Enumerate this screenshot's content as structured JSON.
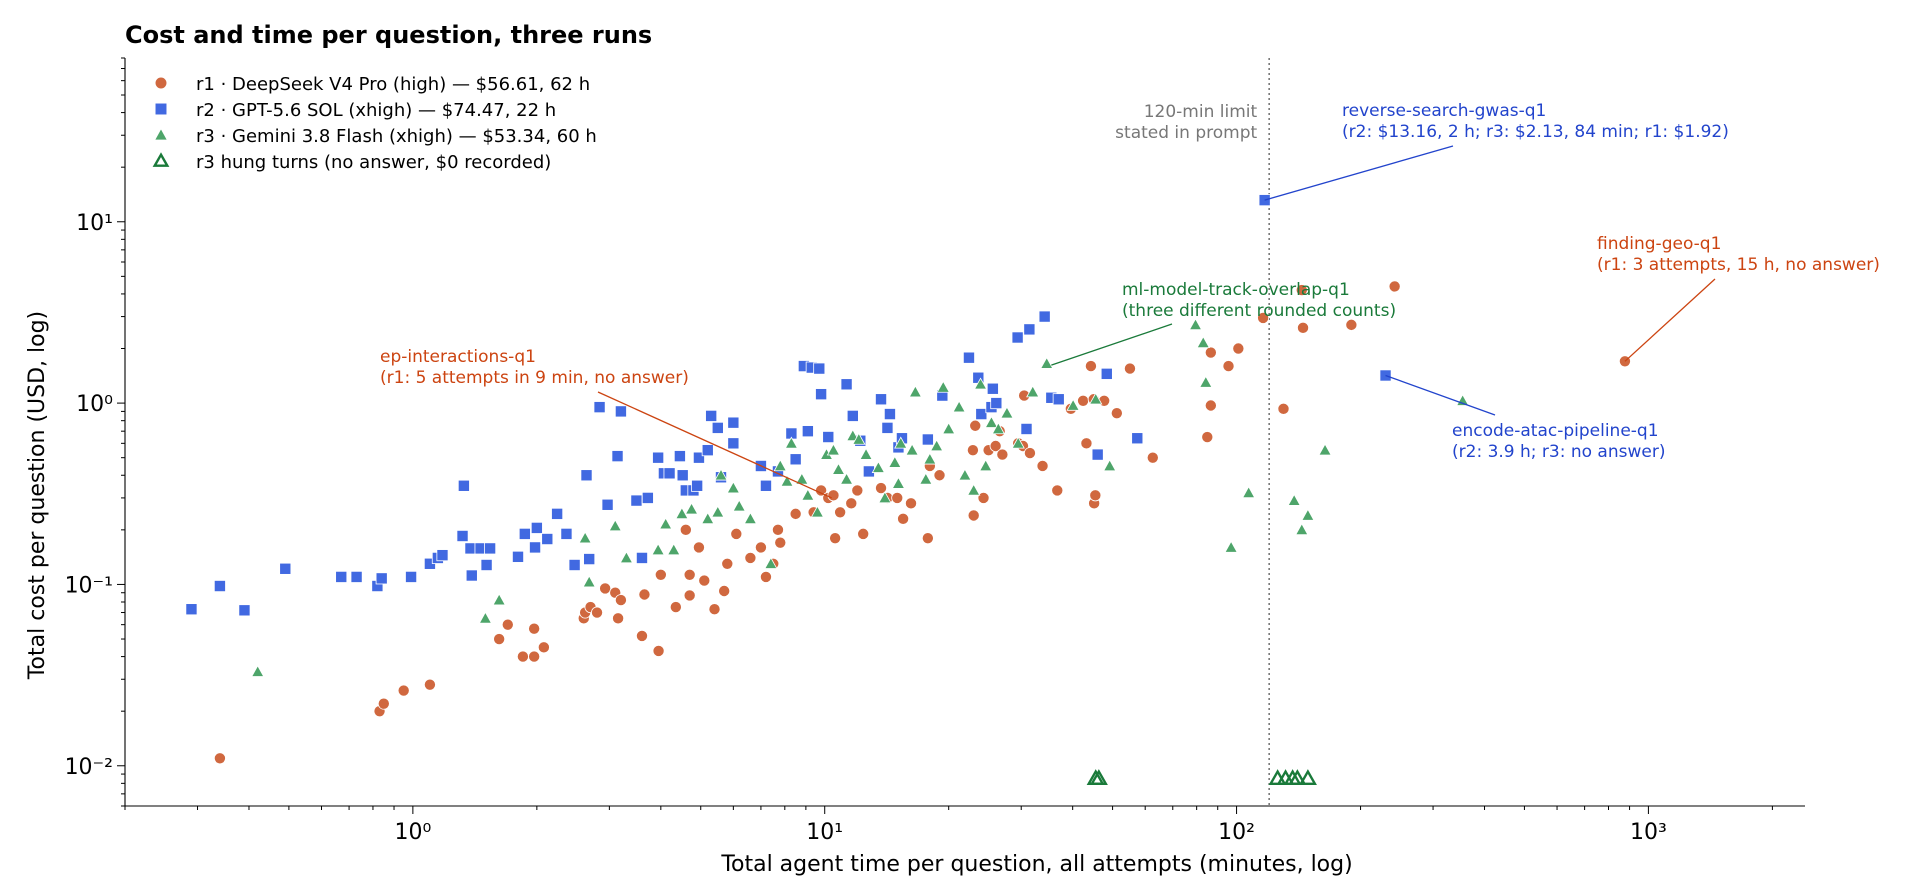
{
  "chart_data": {
    "type": "scatter",
    "title": "Cost and time per question, three runs",
    "xlabel": "Total agent time per question, all attempts (minutes, log)",
    "ylabel": "Total cost per question (USD, log)",
    "xscale": "log",
    "yscale": "log",
    "xlim": [
      0.2,
      2400
    ],
    "ylim": [
      0.006,
      80
    ],
    "xticks": [
      {
        "value": 1,
        "label": "10⁰"
      },
      {
        "value": 10,
        "label": "10¹"
      },
      {
        "value": 100,
        "label": "10²"
      },
      {
        "value": 1000,
        "label": "10³"
      }
    ],
    "yticks": [
      {
        "value": 0.01,
        "label": "10⁻²"
      },
      {
        "value": 0.1,
        "label": "10⁻¹"
      },
      {
        "value": 1,
        "label": "10⁰"
      },
      {
        "value": 10,
        "label": "10¹"
      }
    ],
    "grid": false,
    "legend_position": "top-left",
    "reference_line": {
      "x": 120,
      "label": [
        "120-min limit",
        "stated in prompt"
      ],
      "color": "#777777"
    },
    "series": [
      {
        "name": "r1 · DeepSeek V4 Pro (high) — $56.61, 62 h",
        "marker": "circle",
        "color": "#d0683f",
        "points": [
          [
            0.34,
            0.011
          ],
          [
            0.83,
            0.02
          ],
          [
            0.85,
            0.022
          ],
          [
            0.95,
            0.026
          ],
          [
            1.1,
            0.028
          ],
          [
            1.62,
            0.05
          ],
          [
            1.7,
            0.06
          ],
          [
            1.85,
            0.04
          ],
          [
            1.97,
            0.04
          ],
          [
            1.97,
            0.057
          ],
          [
            2.08,
            0.045
          ],
          [
            2.6,
            0.065
          ],
          [
            2.62,
            0.07
          ],
          [
            2.7,
            0.075
          ],
          [
            2.8,
            0.07
          ],
          [
            2.93,
            0.095
          ],
          [
            3.1,
            0.09
          ],
          [
            3.15,
            0.065
          ],
          [
            3.2,
            0.082
          ],
          [
            3.6,
            0.052
          ],
          [
            3.65,
            0.088
          ],
          [
            3.95,
            0.043
          ],
          [
            4.0,
            0.113
          ],
          [
            4.35,
            0.075
          ],
          [
            4.6,
            0.2
          ],
          [
            4.7,
            0.087
          ],
          [
            4.7,
            0.113
          ],
          [
            4.95,
            0.16
          ],
          [
            5.1,
            0.105
          ],
          [
            5.4,
            0.073
          ],
          [
            5.7,
            0.092
          ],
          [
            5.8,
            0.13
          ],
          [
            6.1,
            0.19
          ],
          [
            6.6,
            0.14
          ],
          [
            7.0,
            0.16
          ],
          [
            7.2,
            0.11
          ],
          [
            7.5,
            0.13
          ],
          [
            7.7,
            0.2
          ],
          [
            7.8,
            0.17
          ],
          [
            8.5,
            0.245
          ],
          [
            9.4,
            0.25
          ],
          [
            9.8,
            0.33
          ],
          [
            10.2,
            0.3
          ],
          [
            10.5,
            0.31
          ],
          [
            10.6,
            0.18
          ],
          [
            10.9,
            0.25
          ],
          [
            11.6,
            0.28
          ],
          [
            12.0,
            0.33
          ],
          [
            12.4,
            0.19
          ],
          [
            13.7,
            0.34
          ],
          [
            14.2,
            0.3
          ],
          [
            15.0,
            0.3
          ],
          [
            15.5,
            0.23
          ],
          [
            16.2,
            0.28
          ],
          [
            17.8,
            0.18
          ],
          [
            18.0,
            0.45
          ],
          [
            19.0,
            0.4
          ],
          [
            22.9,
            0.55
          ],
          [
            23.0,
            0.24
          ],
          [
            23.2,
            0.75
          ],
          [
            24.3,
            0.3
          ],
          [
            25.0,
            0.55
          ],
          [
            26.0,
            0.58
          ],
          [
            26.6,
            0.7
          ],
          [
            27.0,
            0.52
          ],
          [
            29.5,
            0.6
          ],
          [
            30.3,
            0.58
          ],
          [
            30.5,
            1.1
          ],
          [
            31.5,
            0.53
          ],
          [
            33.8,
            0.45
          ],
          [
            36.7,
            0.33
          ],
          [
            39.6,
            0.93
          ],
          [
            42.4,
            1.03
          ],
          [
            43.2,
            0.6
          ],
          [
            44.3,
            1.6
          ],
          [
            45.0,
            1.05
          ],
          [
            45.1,
            0.28
          ],
          [
            45.4,
            0.31
          ],
          [
            47.7,
            1.03
          ],
          [
            51.2,
            0.88
          ],
          [
            55.1,
            1.55
          ],
          [
            62.6,
            0.5
          ],
          [
            84.9,
            0.65
          ],
          [
            86.6,
            0.97
          ],
          [
            86.6,
            1.9
          ],
          [
            95.6,
            1.6
          ],
          [
            101.0,
            2.0
          ],
          [
            116.0,
            2.95
          ],
          [
            130.0,
            0.93
          ],
          [
            144.0,
            4.2
          ],
          [
            145.0,
            2.6
          ],
          [
            190.0,
            2.7
          ],
          [
            242.0,
            4.4
          ],
          [
            877.0,
            1.7
          ]
        ]
      },
      {
        "name": "r2 · GPT-5.6 SOL (xhigh) — $74.47, 22 h",
        "marker": "square",
        "color": "#4169e1",
        "points": [
          [
            0.29,
            0.073
          ],
          [
            0.34,
            0.098
          ],
          [
            0.39,
            0.072
          ],
          [
            0.49,
            0.122
          ],
          [
            0.67,
            0.11
          ],
          [
            0.73,
            0.11
          ],
          [
            0.82,
            0.098
          ],
          [
            0.84,
            0.108
          ],
          [
            0.99,
            0.11
          ],
          [
            1.1,
            0.13
          ],
          [
            1.15,
            0.14
          ],
          [
            1.18,
            0.145
          ],
          [
            1.32,
            0.185
          ],
          [
            1.33,
            0.35
          ],
          [
            1.38,
            0.158
          ],
          [
            1.39,
            0.112
          ],
          [
            1.46,
            0.158
          ],
          [
            1.51,
            0.128
          ],
          [
            1.54,
            0.158
          ],
          [
            1.8,
            0.142
          ],
          [
            1.87,
            0.19
          ],
          [
            1.98,
            0.16
          ],
          [
            2.0,
            0.205
          ],
          [
            2.12,
            0.178
          ],
          [
            2.24,
            0.245
          ],
          [
            2.36,
            0.19
          ],
          [
            2.47,
            0.128
          ],
          [
            2.64,
            0.4
          ],
          [
            2.68,
            0.138
          ],
          [
            2.84,
            0.95
          ],
          [
            2.97,
            0.275
          ],
          [
            3.14,
            0.51
          ],
          [
            3.2,
            0.9
          ],
          [
            3.49,
            0.29
          ],
          [
            3.6,
            0.14
          ],
          [
            3.72,
            0.3
          ],
          [
            3.94,
            0.5
          ],
          [
            4.07,
            0.41
          ],
          [
            4.2,
            0.41
          ],
          [
            4.45,
            0.51
          ],
          [
            4.52,
            0.4
          ],
          [
            4.6,
            0.33
          ],
          [
            4.8,
            0.33
          ],
          [
            4.9,
            0.35
          ],
          [
            4.95,
            0.5
          ],
          [
            5.2,
            0.55
          ],
          [
            5.3,
            0.85
          ],
          [
            5.5,
            0.73
          ],
          [
            5.6,
            0.39
          ],
          [
            6.0,
            0.6
          ],
          [
            6.0,
            0.78
          ],
          [
            7.0,
            0.45
          ],
          [
            7.2,
            0.35
          ],
          [
            7.7,
            0.42
          ],
          [
            8.3,
            0.68
          ],
          [
            8.5,
            0.49
          ],
          [
            8.9,
            1.6
          ],
          [
            9.1,
            0.7
          ],
          [
            9.3,
            1.57
          ],
          [
            9.7,
            1.55
          ],
          [
            9.8,
            1.12
          ],
          [
            10.2,
            0.65
          ],
          [
            11.3,
            1.27
          ],
          [
            11.7,
            0.85
          ],
          [
            12.2,
            0.62
          ],
          [
            12.8,
            0.42
          ],
          [
            13.7,
            1.05
          ],
          [
            14.2,
            0.73
          ],
          [
            14.4,
            0.87
          ],
          [
            15.1,
            0.57
          ],
          [
            15.4,
            0.64
          ],
          [
            17.8,
            0.63
          ],
          [
            19.3,
            1.1
          ],
          [
            22.4,
            1.78
          ],
          [
            23.6,
            1.38
          ],
          [
            24.0,
            0.87
          ],
          [
            25.4,
            0.95
          ],
          [
            25.6,
            1.2
          ],
          [
            26.1,
            1.0
          ],
          [
            29.4,
            2.3
          ],
          [
            30.9,
            0.72
          ],
          [
            31.4,
            2.55
          ],
          [
            34.2,
            3.0
          ],
          [
            35.5,
            1.07
          ],
          [
            37.0,
            1.05
          ],
          [
            46.0,
            0.52
          ],
          [
            48.4,
            1.45
          ],
          [
            57.4,
            0.64
          ],
          [
            117.0,
            13.16
          ],
          [
            230.0,
            1.42
          ]
        ]
      },
      {
        "name": "r3 · Gemini 3.8 Flash (xhigh) — $53.34, 60 h",
        "marker": "triangle",
        "color": "#4ea56a",
        "points": [
          [
            0.42,
            0.033
          ],
          [
            1.5,
            0.065
          ],
          [
            1.62,
            0.082
          ],
          [
            2.62,
            0.18
          ],
          [
            2.68,
            0.103
          ],
          [
            3.1,
            0.21
          ],
          [
            3.3,
            0.14
          ],
          [
            3.94,
            0.155
          ],
          [
            4.11,
            0.215
          ],
          [
            4.3,
            0.155
          ],
          [
            4.5,
            0.245
          ],
          [
            4.75,
            0.26
          ],
          [
            5.2,
            0.23
          ],
          [
            5.5,
            0.25
          ],
          [
            5.6,
            0.4
          ],
          [
            6.0,
            0.34
          ],
          [
            6.2,
            0.27
          ],
          [
            6.6,
            0.23
          ],
          [
            7.4,
            0.13
          ],
          [
            7.8,
            0.45
          ],
          [
            8.1,
            0.37
          ],
          [
            8.3,
            0.6
          ],
          [
            8.8,
            0.38
          ],
          [
            9.1,
            0.31
          ],
          [
            9.6,
            0.25
          ],
          [
            10.1,
            0.52
          ],
          [
            10.5,
            0.55
          ],
          [
            10.8,
            0.43
          ],
          [
            11.3,
            0.38
          ],
          [
            11.7,
            0.66
          ],
          [
            12.1,
            0.63
          ],
          [
            12.6,
            0.52
          ],
          [
            13.5,
            0.44
          ],
          [
            14.0,
            0.3
          ],
          [
            14.8,
            0.47
          ],
          [
            15.1,
            0.36
          ],
          [
            15.3,
            0.6
          ],
          [
            16.3,
            0.55
          ],
          [
            16.6,
            1.15
          ],
          [
            17.6,
            0.38
          ],
          [
            18.0,
            0.49
          ],
          [
            18.7,
            0.58
          ],
          [
            19.4,
            1.22
          ],
          [
            20.0,
            0.72
          ],
          [
            21.2,
            0.95
          ],
          [
            21.9,
            0.4
          ],
          [
            23.0,
            0.33
          ],
          [
            23.9,
            1.27
          ],
          [
            24.6,
            0.45
          ],
          [
            25.4,
            0.78
          ],
          [
            26.4,
            0.72
          ],
          [
            27.7,
            0.88
          ],
          [
            29.5,
            0.6
          ],
          [
            32.0,
            1.15
          ],
          [
            34.6,
            1.65
          ],
          [
            40.1,
            0.97
          ],
          [
            45.5,
            1.05
          ],
          [
            49.2,
            0.45
          ],
          [
            79.5,
            2.7
          ],
          [
            83.0,
            2.15
          ],
          [
            84.2,
            1.3
          ],
          [
            97.0,
            0.16
          ],
          [
            107.0,
            0.32
          ],
          [
            138.0,
            0.29
          ],
          [
            144.0,
            0.2
          ],
          [
            149.0,
            0.24
          ],
          [
            164.0,
            0.55
          ],
          [
            354.0,
            1.03
          ]
        ]
      },
      {
        "name": "r3 hung turns (no answer, $0 recorded)",
        "marker": "triangle-open",
        "color": "#1a7a3a",
        "points": [
          [
            45.5,
            0.0085
          ],
          [
            46.3,
            0.0085
          ],
          [
            125.8,
            0.0085
          ],
          [
            131.5,
            0.0085
          ],
          [
            136.8,
            0.0085
          ],
          [
            140.5,
            0.0085
          ],
          [
            149.0,
            0.0085
          ]
        ]
      }
    ],
    "annotations": [
      {
        "lines": [
          "ep-interactions-q1",
          "(r1: 5 attempts in 9 min, no answer)"
        ],
        "color": "#cc4411",
        "target": [
          10.4,
          0.3
        ]
      },
      {
        "lines": [
          "ml-model-track-overlap-q1",
          "(three different rounded counts)"
        ],
        "color": "#1a7a3a",
        "target": [
          35.5,
          1.62
        ]
      },
      {
        "lines": [
          "reverse-search-gwas-q1",
          "(r2: $13.16, 2 h; r3: $2.13, 84 min; r1: $1.92)"
        ],
        "color": "#2244cc",
        "target": [
          117.0,
          13.16
        ]
      },
      {
        "lines": [
          "finding-geo-q1",
          "(r1: 3 attempts, 15 h, no answer)"
        ],
        "color": "#cc4411",
        "target": [
          877.0,
          1.7
        ]
      },
      {
        "lines": [
          "encode-atac-pipeline-q1",
          "(r2: 3.9 h; r3: no answer)"
        ],
        "color": "#2244cc",
        "target": [
          230.0,
          1.42
        ]
      }
    ]
  }
}
